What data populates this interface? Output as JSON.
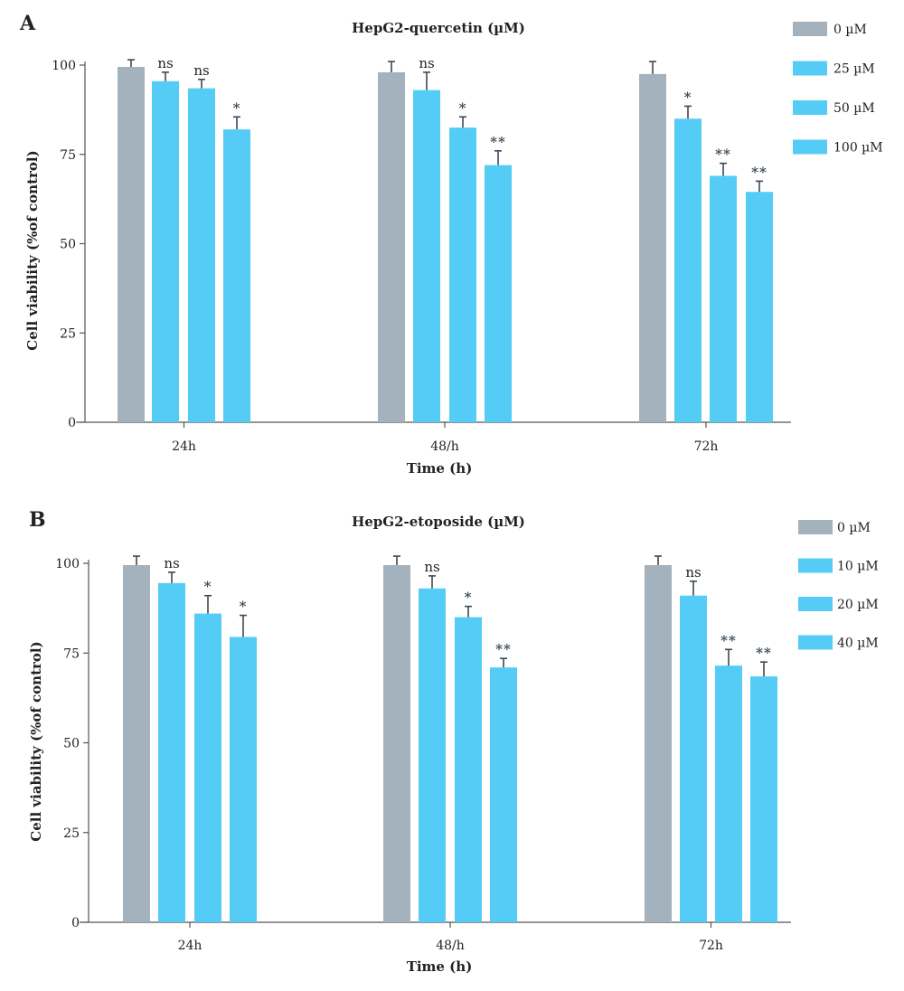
{
  "chart_data": [
    {
      "type": "bar",
      "panel": "A",
      "title": "HepG2-quercetin (µM)",
      "xlabel": "Time (h)",
      "ylabel": "Cell viability (%of control)",
      "ylim": [
        0,
        100
      ],
      "yticks": [
        0,
        25,
        50,
        75,
        100
      ],
      "categories": [
        "24h",
        "48/h",
        "72h"
      ],
      "legend_position": "top-right",
      "colors": {
        "control": "#a3b2bd",
        "treatment": "#55ccf5",
        "errorbar": "#3b4a55",
        "axis": "#555555"
      },
      "series": [
        {
          "name": "0 µM",
          "values": [
            99.5,
            98,
            97.5
          ],
          "errors": [
            2,
            3,
            3.5
          ],
          "sig": [
            "",
            "",
            ""
          ]
        },
        {
          "name": "25 µM",
          "values": [
            95.5,
            93,
            85
          ],
          "errors": [
            2.5,
            5,
            3.5
          ],
          "sig": [
            "ns",
            "ns",
            "*"
          ]
        },
        {
          "name": "50 µM",
          "values": [
            93.5,
            82.5,
            69
          ],
          "errors": [
            2.5,
            3,
            3.5
          ],
          "sig": [
            "ns",
            "*",
            "**"
          ]
        },
        {
          "name": "100 µM",
          "values": [
            82,
            72,
            64.5
          ],
          "errors": [
            3.5,
            4,
            3
          ],
          "sig": [
            "*",
            "**",
            "**"
          ]
        }
      ]
    },
    {
      "type": "bar",
      "panel": "B",
      "title": "HepG2-etoposide (µM)",
      "xlabel": "Time (h)",
      "ylabel": "Cell viability (%of control)",
      "ylim": [
        0,
        100
      ],
      "yticks": [
        0,
        25,
        50,
        75,
        100
      ],
      "categories": [
        "24h",
        "48/h",
        "72h"
      ],
      "legend_position": "top-right",
      "colors": {
        "control": "#a3b2bd",
        "treatment": "#55ccf5",
        "errorbar": "#3b4a55",
        "axis": "#555555"
      },
      "series": [
        {
          "name": "0 µM",
          "values": [
            99.5,
            99.5,
            99.5
          ],
          "errors": [
            2.5,
            2.5,
            2.5
          ],
          "sig": [
            "",
            "",
            ""
          ]
        },
        {
          "name": "10 µM",
          "values": [
            94.5,
            93,
            91
          ],
          "errors": [
            3,
            3.5,
            4
          ],
          "sig": [
            "ns",
            "ns",
            "ns"
          ]
        },
        {
          "name": "20 µM",
          "values": [
            86,
            85,
            71.5
          ],
          "errors": [
            5,
            3,
            4.5
          ],
          "sig": [
            "*",
            "*",
            "**"
          ]
        },
        {
          "name": "40 µM",
          "values": [
            79.5,
            71,
            68.5
          ],
          "errors": [
            6,
            2.5,
            4
          ],
          "sig": [
            "*",
            "**",
            "**"
          ]
        }
      ]
    }
  ]
}
